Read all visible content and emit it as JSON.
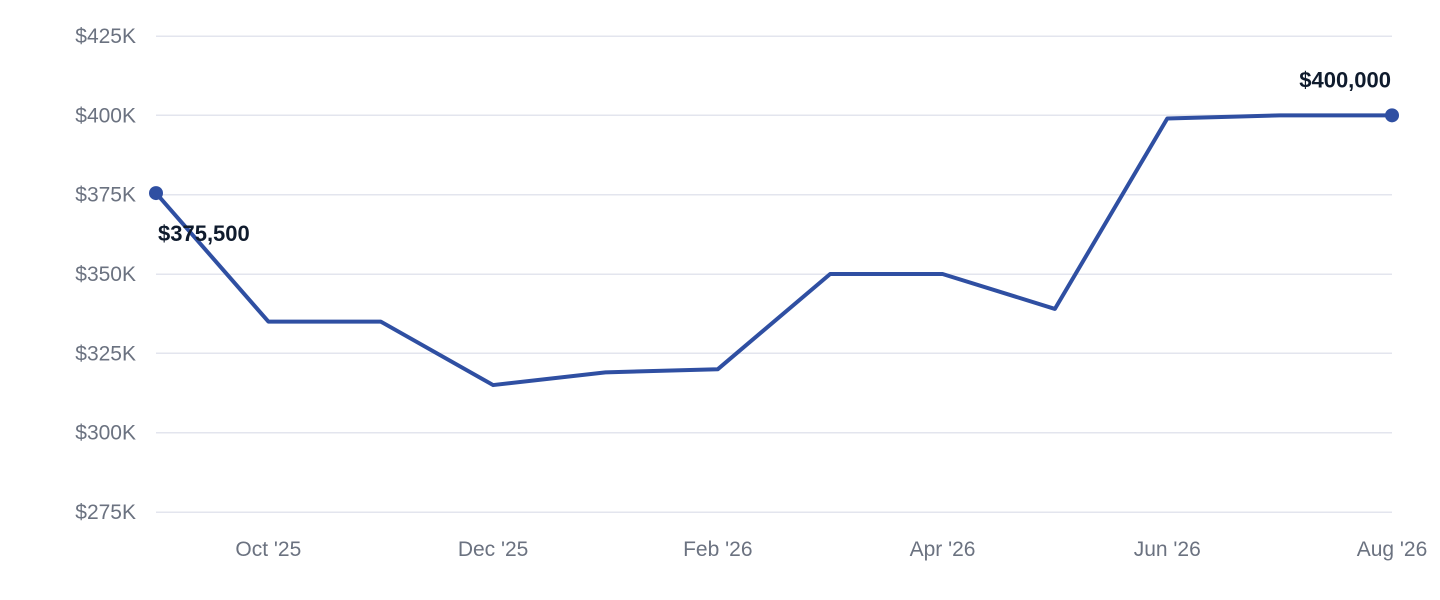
{
  "chart_data": {
    "type": "line",
    "title": "",
    "xlabel": "",
    "ylabel": "",
    "grid": true,
    "ylim": [
      275000,
      425000
    ],
    "y_ticks": [
      {
        "value": 425000,
        "label": "$425K"
      },
      {
        "value": 400000,
        "label": "$400K"
      },
      {
        "value": 375000,
        "label": "$375K"
      },
      {
        "value": 350000,
        "label": "$350K"
      },
      {
        "value": 325000,
        "label": "$325K"
      },
      {
        "value": 300000,
        "label": "$300K"
      },
      {
        "value": 275000,
        "label": "$275K"
      }
    ],
    "x_ticks": [
      "Oct '25",
      "Dec '25",
      "Feb '26",
      "Apr '26",
      "Jun '26",
      "Aug '26"
    ],
    "x": [
      "Sep '25",
      "Oct '25",
      "Nov '25",
      "Dec '25",
      "Jan '26",
      "Feb '26",
      "Mar '26",
      "Apr '26",
      "May '26",
      "Jun '26",
      "Jul '26",
      "Aug '26"
    ],
    "series": [
      {
        "values": [
          375500,
          335000,
          335000,
          315000,
          319000,
          320000,
          350000,
          350000,
          339000,
          399000,
          400000,
          400000
        ],
        "color": "#2f4fa2"
      }
    ],
    "data_labels": [
      {
        "index": 0,
        "text": "$375,500"
      },
      {
        "index": 11,
        "text": "$400,000"
      }
    ]
  }
}
